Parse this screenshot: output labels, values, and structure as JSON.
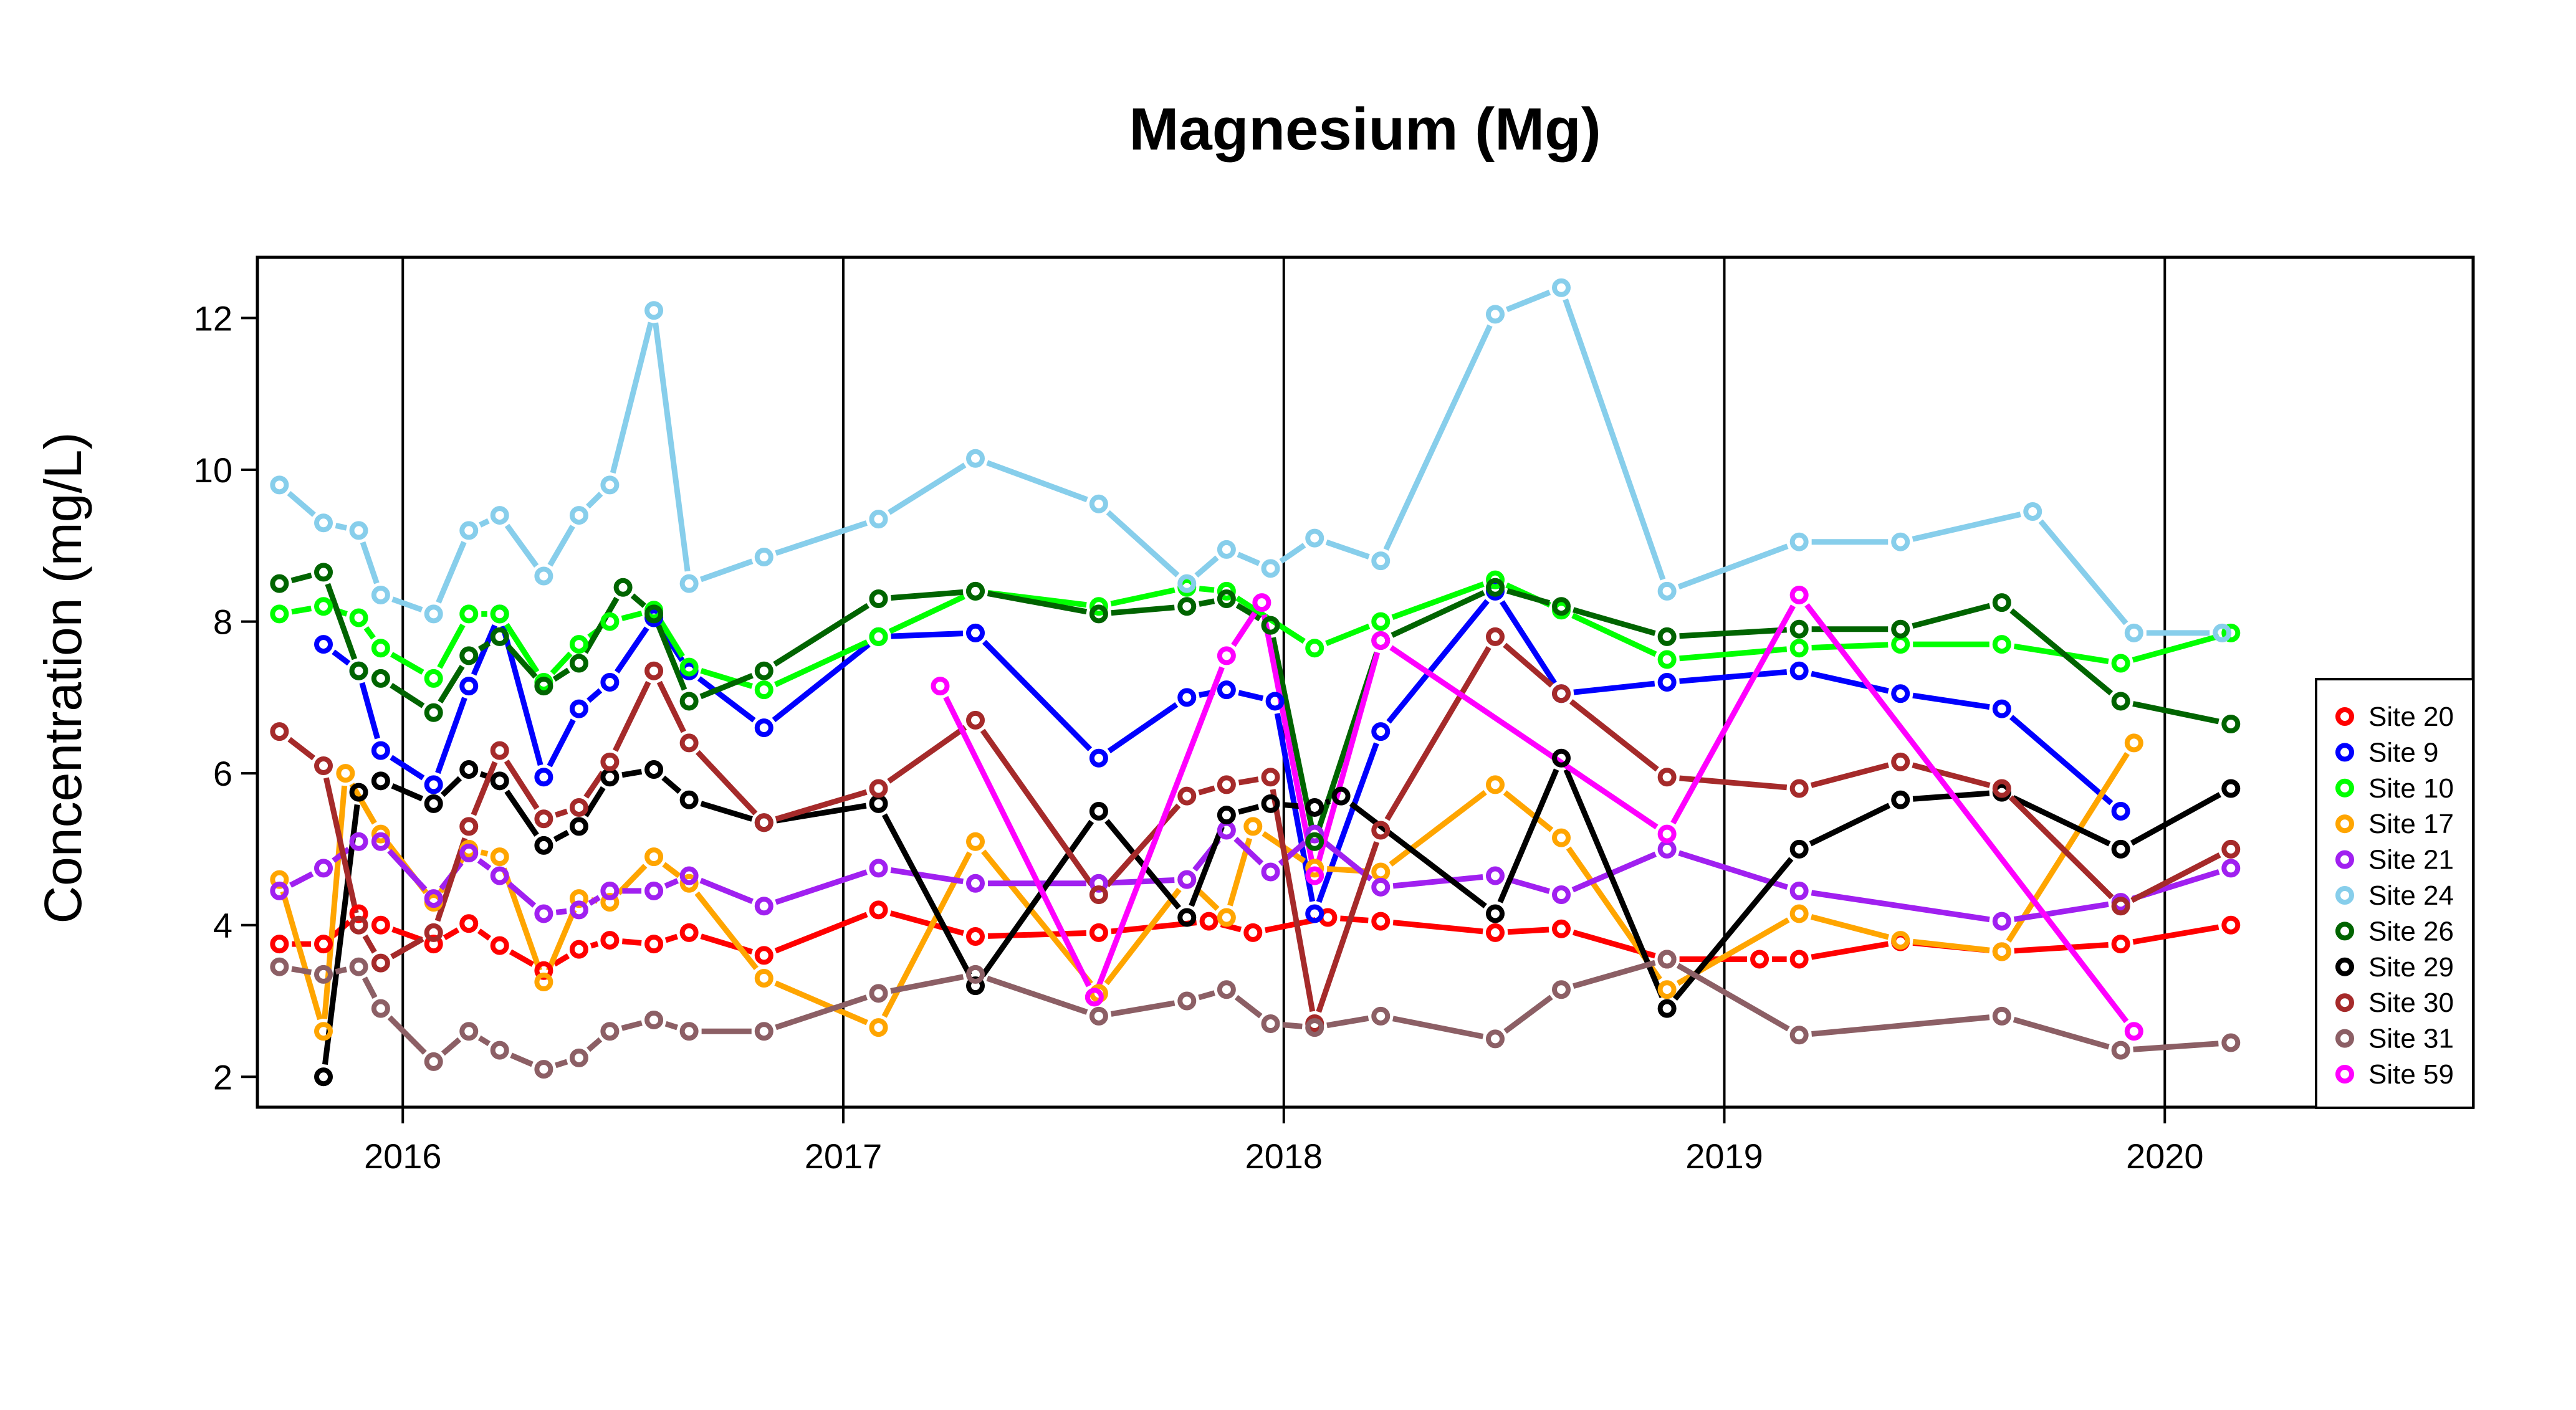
{
  "chart_data": {
    "type": "line",
    "title": "Magnesium (Mg)",
    "xlabel": "",
    "ylabel": "Concentration (mg/L)",
    "xlim": [
      2015.67,
      2020.7
    ],
    "ylim": [
      1.6,
      12.8
    ],
    "x_ticks": [
      {
        "label": "2016",
        "value": 2016
      },
      {
        "label": "2017",
        "value": 2017
      },
      {
        "label": "2018",
        "value": 2018
      },
      {
        "label": "2019",
        "value": 2019
      },
      {
        "label": "2020",
        "value": 2020
      }
    ],
    "y_ticks": [
      {
        "label": "2",
        "value": 2
      },
      {
        "label": "4",
        "value": 4
      },
      {
        "label": "6",
        "value": 6
      },
      {
        "label": "8",
        "value": 8
      },
      {
        "label": "10",
        "value": 10
      },
      {
        "label": "12",
        "value": 12
      }
    ],
    "vertical_gridlines": [
      2016,
      2017,
      2018,
      2019,
      2020
    ],
    "legend_position": "right",
    "series": [
      {
        "name": "Site 20",
        "label": "Site 20",
        "color": "#ff0000",
        "x": [
          2015.72,
          2015.82,
          2015.9,
          2015.95,
          2016.07,
          2016.15,
          2016.22,
          2016.32,
          2016.4,
          2016.47,
          2016.57,
          2016.65,
          2016.82,
          2017.08,
          2017.3,
          2017.58,
          2017.83,
          2017.93,
          2018.1,
          2018.22,
          2018.48,
          2018.63,
          2018.87,
          2019.08,
          2019.17,
          2019.4,
          2019.63,
          2019.9,
          2020.15
        ],
        "y": [
          3.75,
          3.75,
          4.15,
          4.0,
          3.75,
          4.02,
          3.73,
          3.4,
          3.68,
          3.8,
          3.75,
          3.9,
          3.6,
          4.2,
          3.85,
          3.9,
          4.05,
          3.9,
          4.1,
          4.05,
          3.9,
          3.95,
          3.55,
          3.55,
          3.55,
          3.78,
          3.65,
          3.75,
          4.0
        ]
      },
      {
        "name": "Site 9",
        "label": "Site 9",
        "color": "#0000ff",
        "x": [
          2015.82,
          2015.9,
          2015.95,
          2016.07,
          2016.15,
          2016.22,
          2016.32,
          2016.4,
          2016.47,
          2016.57,
          2016.65,
          2016.82,
          2017.08,
          2017.3,
          2017.58,
          2017.78,
          2017.87,
          2017.98,
          2018.07,
          2018.22,
          2018.48,
          2018.63,
          2018.87,
          2019.17,
          2019.4,
          2019.63,
          2019.9
        ],
        "y": [
          7.7,
          7.35,
          6.3,
          5.85,
          7.15,
          8.1,
          5.95,
          6.85,
          7.2,
          8.05,
          7.35,
          6.6,
          7.8,
          7.85,
          6.2,
          7.0,
          7.1,
          6.95,
          4.15,
          6.55,
          8.4,
          7.05,
          7.2,
          7.35,
          7.05,
          6.85,
          5.5
        ]
      },
      {
        "name": "Site 10",
        "label": "Site 10",
        "color": "#00ff00",
        "x": [
          2015.72,
          2015.82,
          2015.9,
          2015.95,
          2016.07,
          2016.15,
          2016.22,
          2016.32,
          2016.4,
          2016.47,
          2016.57,
          2016.65,
          2016.82,
          2017.08,
          2017.3,
          2017.58,
          2017.78,
          2017.87,
          2018.07,
          2018.22,
          2018.48,
          2018.63,
          2018.87,
          2019.17,
          2019.4,
          2019.63,
          2019.9,
          2020.15
        ],
        "y": [
          8.1,
          8.2,
          8.05,
          7.65,
          7.25,
          8.1,
          8.1,
          7.2,
          7.7,
          8.0,
          8.15,
          7.4,
          7.1,
          7.8,
          8.4,
          8.2,
          8.45,
          8.4,
          7.65,
          8.0,
          8.55,
          8.15,
          7.5,
          7.65,
          7.7,
          7.7,
          7.45,
          7.85
        ]
      },
      {
        "name": "Site 17",
        "label": "Site 17",
        "color": "#ffa500",
        "x": [
          2015.72,
          2015.82,
          2015.87,
          2015.95,
          2016.07,
          2016.15,
          2016.22,
          2016.32,
          2016.4,
          2016.47,
          2016.57,
          2016.65,
          2016.82,
          2017.08,
          2017.3,
          2017.58,
          2017.78,
          2017.87,
          2017.93,
          2018.07,
          2018.22,
          2018.48,
          2018.63,
          2018.87,
          2019.17,
          2019.4,
          2019.63,
          2019.93
        ],
        "y": [
          4.6,
          2.6,
          6.0,
          5.2,
          4.3,
          5.0,
          4.9,
          3.25,
          4.35,
          4.3,
          4.9,
          4.55,
          3.3,
          2.65,
          5.1,
          3.1,
          4.6,
          4.1,
          5.3,
          4.75,
          4.7,
          5.85,
          5.15,
          3.15,
          4.15,
          3.8,
          3.65,
          6.4
        ]
      },
      {
        "name": "Site 21",
        "label": "Site 21",
        "color": "#a020f0",
        "x": [
          2015.72,
          2015.82,
          2015.9,
          2015.95,
          2016.07,
          2016.15,
          2016.22,
          2016.32,
          2016.4,
          2016.47,
          2016.57,
          2016.65,
          2016.82,
          2017.08,
          2017.3,
          2017.58,
          2017.78,
          2017.87,
          2017.97,
          2018.07,
          2018.22,
          2018.48,
          2018.63,
          2018.87,
          2019.17,
          2019.63,
          2019.9,
          2020.15
        ],
        "y": [
          4.45,
          4.75,
          5.1,
          5.1,
          4.35,
          4.95,
          4.65,
          4.15,
          4.2,
          4.45,
          4.45,
          4.65,
          4.25,
          4.75,
          4.55,
          4.55,
          4.6,
          5.25,
          4.7,
          5.2,
          4.5,
          4.65,
          4.4,
          5.0,
          4.45,
          4.05,
          4.3,
          4.75
        ]
      },
      {
        "name": "Site 24",
        "label": "Site 24",
        "color": "#87ceeb",
        "x": [
          2015.72,
          2015.82,
          2015.9,
          2015.95,
          2016.07,
          2016.15,
          2016.22,
          2016.32,
          2016.4,
          2016.47,
          2016.57,
          2016.65,
          2016.82,
          2017.08,
          2017.3,
          2017.58,
          2017.78,
          2017.87,
          2017.97,
          2018.07,
          2018.22,
          2018.48,
          2018.63,
          2018.87,
          2019.17,
          2019.4,
          2019.7,
          2019.93,
          2020.13
        ],
        "y": [
          9.8,
          9.3,
          9.2,
          8.35,
          8.1,
          9.2,
          9.4,
          8.6,
          9.4,
          9.8,
          12.1,
          8.5,
          8.85,
          9.35,
          10.15,
          9.55,
          8.5,
          8.95,
          8.7,
          9.1,
          8.8,
          12.05,
          12.4,
          8.4,
          9.05,
          9.05,
          9.45,
          7.85,
          7.85
        ]
      },
      {
        "name": "Site 26",
        "label": "Site 26",
        "color": "#006400",
        "x": [
          2015.72,
          2015.82,
          2015.9,
          2015.95,
          2016.07,
          2016.15,
          2016.22,
          2016.32,
          2016.4,
          2016.5,
          2016.57,
          2016.65,
          2016.82,
          2017.08,
          2017.3,
          2017.58,
          2017.78,
          2017.87,
          2017.97,
          2018.07,
          2018.22,
          2018.48,
          2018.63,
          2018.87,
          2019.17,
          2019.4,
          2019.63,
          2019.9,
          2020.15
        ],
        "y": [
          8.5,
          8.65,
          7.35,
          7.25,
          6.8,
          7.55,
          7.8,
          7.15,
          7.45,
          8.45,
          8.1,
          6.95,
          7.35,
          8.3,
          8.4,
          8.1,
          8.2,
          8.3,
          7.95,
          5.1,
          7.75,
          8.45,
          8.2,
          7.8,
          7.9,
          7.9,
          8.25,
          6.95,
          6.65
        ]
      },
      {
        "name": "Site 29",
        "label": "Site 29",
        "color": "#000000",
        "x": [
          2015.82,
          2015.9,
          2015.95,
          2016.07,
          2016.15,
          2016.22,
          2016.32,
          2016.4,
          2016.47,
          2016.57,
          2016.65,
          2016.82,
          2017.08,
          2017.3,
          2017.58,
          2017.78,
          2017.87,
          2017.97,
          2018.07,
          2018.13,
          2018.48,
          2018.63,
          2018.87,
          2019.17,
          2019.4,
          2019.63,
          2019.9,
          2020.15
        ],
        "y": [
          2.0,
          5.75,
          5.9,
          5.6,
          6.05,
          5.9,
          5.05,
          5.3,
          5.95,
          6.05,
          5.65,
          5.35,
          5.6,
          3.2,
          5.5,
          4.1,
          5.45,
          5.6,
          5.55,
          5.7,
          4.15,
          6.2,
          2.9,
          5.0,
          5.65,
          5.75,
          5.0,
          5.8
        ]
      },
      {
        "name": "Site 30",
        "label": "Site 30",
        "color": "#a52a2a",
        "x": [
          2015.72,
          2015.82,
          2015.9,
          2015.95,
          2016.07,
          2016.15,
          2016.22,
          2016.32,
          2016.4,
          2016.47,
          2016.57,
          2016.65,
          2016.82,
          2017.08,
          2017.3,
          2017.58,
          2017.78,
          2017.87,
          2017.97,
          2018.07,
          2018.22,
          2018.48,
          2018.63,
          2018.87,
          2019.17,
          2019.4,
          2019.63,
          2019.9,
          2020.15
        ],
        "y": [
          6.55,
          6.1,
          4.0,
          3.5,
          3.9,
          5.3,
          6.3,
          5.4,
          5.55,
          6.15,
          7.35,
          6.4,
          5.35,
          5.8,
          6.7,
          4.4,
          5.7,
          5.85,
          5.95,
          2.7,
          5.25,
          7.8,
          7.05,
          5.95,
          5.8,
          6.15,
          5.8,
          4.25,
          5.0
        ]
      },
      {
        "name": "Site 31",
        "label": "Site 31",
        "color": "#8c5f65",
        "x": [
          2015.72,
          2015.82,
          2015.9,
          2015.95,
          2016.07,
          2016.15,
          2016.22,
          2016.32,
          2016.4,
          2016.47,
          2016.57,
          2016.65,
          2016.82,
          2017.08,
          2017.3,
          2017.58,
          2017.78,
          2017.87,
          2017.97,
          2018.07,
          2018.22,
          2018.48,
          2018.63,
          2018.87,
          2019.17,
          2019.63,
          2019.9,
          2020.15
        ],
        "y": [
          3.45,
          3.35,
          3.45,
          2.9,
          2.2,
          2.6,
          2.35,
          2.1,
          2.25,
          2.6,
          2.75,
          2.6,
          2.6,
          3.1,
          3.35,
          2.8,
          3.0,
          3.15,
          2.7,
          2.65,
          2.8,
          2.5,
          3.15,
          3.55,
          2.55,
          2.8,
          2.35,
          2.45
        ]
      },
      {
        "name": "Site 59",
        "label": "Site 59",
        "color": "#ff00ff",
        "x": [
          2017.22,
          2017.57,
          2017.87,
          2017.95,
          2018.07,
          2018.22,
          2018.87,
          2019.17,
          2019.93
        ],
        "y": [
          7.15,
          3.05,
          7.55,
          8.25,
          4.65,
          7.75,
          5.2,
          8.35,
          2.6
        ]
      }
    ]
  }
}
